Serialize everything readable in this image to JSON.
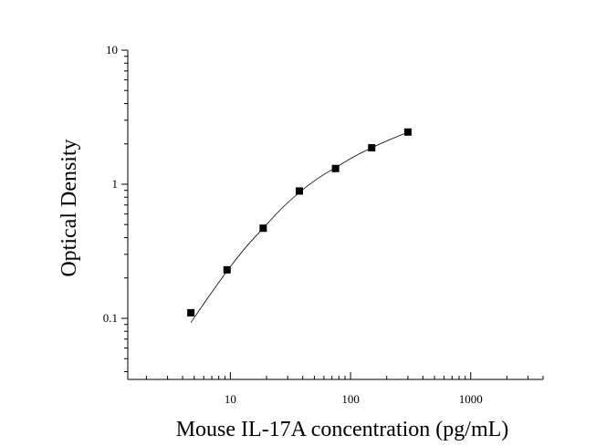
{
  "chart_data": {
    "type": "scatter",
    "title": "",
    "xlabel": "Mouse IL-17A concentration (pg/mL)",
    "ylabel": "Optical Density",
    "x_scale": "log",
    "y_scale": "log",
    "xlim": [
      1.4,
      4000
    ],
    "ylim": [
      0.035,
      10
    ],
    "x_ticks": [
      {
        "value": 10,
        "label": "10"
      },
      {
        "value": 100,
        "label": "100"
      },
      {
        "value": 1000,
        "label": "1000"
      }
    ],
    "y_ticks": [
      {
        "value": 0.1,
        "label": "0.1"
      },
      {
        "value": 1,
        "label": "1"
      },
      {
        "value": 10,
        "label": "10"
      }
    ],
    "series": [
      {
        "marker": "square",
        "color": "#000000",
        "x": [
          4.69,
          9.38,
          18.75,
          37.5,
          75,
          150,
          300
        ],
        "y": [
          0.11,
          0.23,
          0.47,
          0.89,
          1.31,
          1.87,
          2.45
        ]
      }
    ],
    "fit_curve": {
      "color": "#000000",
      "x": [
        4.69,
        6.6,
        9.38,
        13.3,
        18.75,
        26.5,
        37.5,
        53,
        75,
        106,
        150,
        212,
        300
      ],
      "y": [
        0.093,
        0.145,
        0.225,
        0.335,
        0.47,
        0.655,
        0.87,
        1.1,
        1.33,
        1.6,
        1.87,
        2.15,
        2.44
      ]
    },
    "grid": false,
    "legend": "none"
  }
}
